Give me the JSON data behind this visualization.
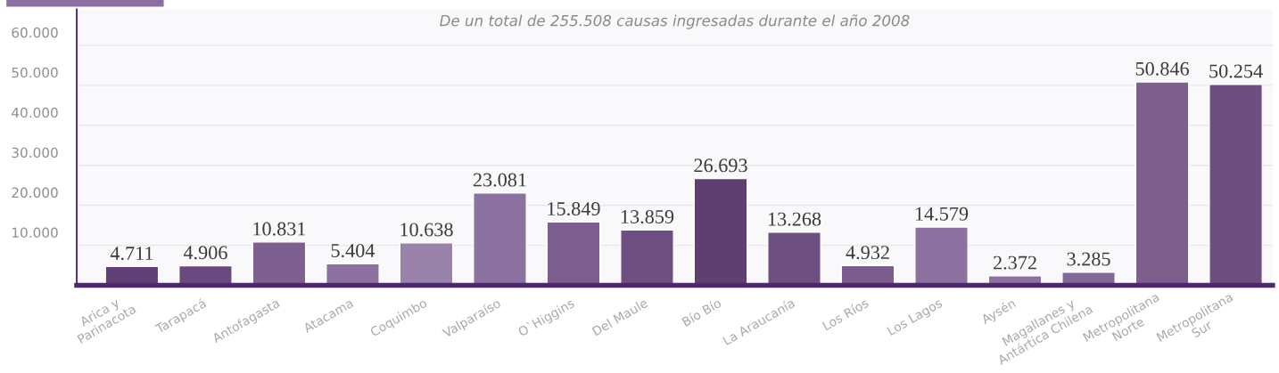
{
  "chart_data": {
    "type": "bar",
    "annotations": [
      "De un total de 255.508 causas ingresadas durante el año 2008"
    ],
    "categories": [
      "Arica y\nParinacota",
      "Tarapacá",
      "Antofagasta",
      "Atacama",
      "Coquimbo",
      "Valparaíso",
      "O`Higgins",
      "Del Maule",
      "Bío Bío",
      "La Araucanía",
      "Los Ríos",
      "Los Lagos",
      "Aysén",
      "Magallanes y\nAntártica Chilena",
      "Metropolitana\nNorte",
      "Metropolitana\nSur"
    ],
    "values": [
      4711,
      4906,
      10831,
      5404,
      10638,
      23081,
      15849,
      13859,
      26693,
      13268,
      4932,
      14579,
      2372,
      3285,
      50846,
      50254
    ],
    "colors": [
      "#5f3f74",
      "#6a4a7e",
      "#7d6090",
      "#8a71a0",
      "#9a83ab",
      "#8b72a0",
      "#7d5f8f",
      "#6e4f82",
      "#5f3f72",
      "#6d4f81",
      "#7a5c8e",
      "#8a71a0",
      "#8a71a0",
      "#826896",
      "#7c5f8d",
      "#6d4e80"
    ],
    "ylim": [
      0,
      69000
    ],
    "yticks": [
      {
        "value": 10000,
        "label": "10.000"
      },
      {
        "value": 20000,
        "label": "20.000"
      },
      {
        "value": 30000,
        "label": "30.000"
      },
      {
        "value": 40000,
        "label": "40.000"
      },
      {
        "value": 50000,
        "label": "50.000"
      },
      {
        "value": 60000,
        "label": "60.000"
      }
    ],
    "value_labels": [
      "4.711",
      "4.906",
      "10.831",
      "5.404",
      "10.638",
      "23.081",
      "15.849",
      "13.859",
      "26.693",
      "13.268",
      "4.932",
      "14.579",
      "2.372",
      "3.285",
      "50.846",
      "50.254"
    ],
    "grid": "y"
  }
}
